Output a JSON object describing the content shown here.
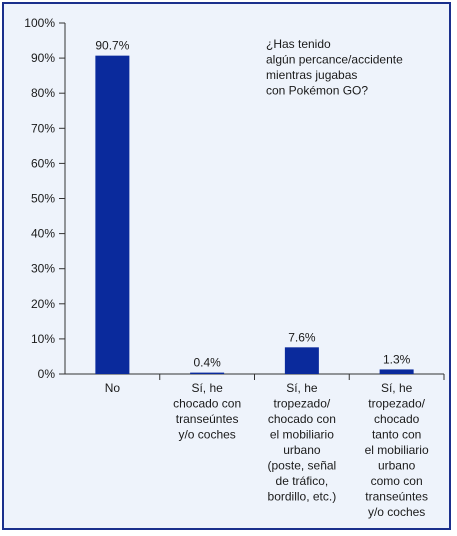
{
  "chart_data": {
    "type": "bar",
    "title": "¿Has tenido algún percance/accidente mientras jugabas con Pokémon GO?",
    "title_lines": [
      "¿Has tenido",
      "algún percance/accidente",
      "mientras jugabas",
      "con Pokémon GO?"
    ],
    "xlabel": "",
    "ylabel": "",
    "ylim": [
      0,
      100
    ],
    "yticks": [
      0,
      10,
      20,
      30,
      40,
      50,
      60,
      70,
      80,
      90,
      100
    ],
    "ytick_labels": [
      "0%",
      "10%",
      "20%",
      "30%",
      "40%",
      "50%",
      "60%",
      "70%",
      "80%",
      "90%",
      "100%"
    ],
    "categories": [
      [
        "No"
      ],
      [
        "Sí, he",
        "chocado con",
        "transeúntes",
        "y/o coches"
      ],
      [
        "Sí, he",
        "tropezado/",
        "chocado con",
        "el mobiliario",
        "urbano",
        "(poste, señal",
        "de tráfico,",
        "bordillo, etc.)"
      ],
      [
        "Sí, he",
        "tropezado/",
        "chocado",
        "tanto con",
        "el mobiliario",
        "urbano",
        "como con",
        "transeúntes",
        "y/o coches"
      ]
    ],
    "values": [
      90.7,
      0.4,
      7.6,
      1.3
    ],
    "data_labels": [
      "90.7%",
      "0.4%",
      "7.6%",
      "1.3%"
    ],
    "grid": false,
    "legend": "none",
    "colors": {
      "bar": "#0a2a9c",
      "background": "#eef3fb",
      "frame": "#1a2f8c",
      "axis": "#333333"
    }
  }
}
